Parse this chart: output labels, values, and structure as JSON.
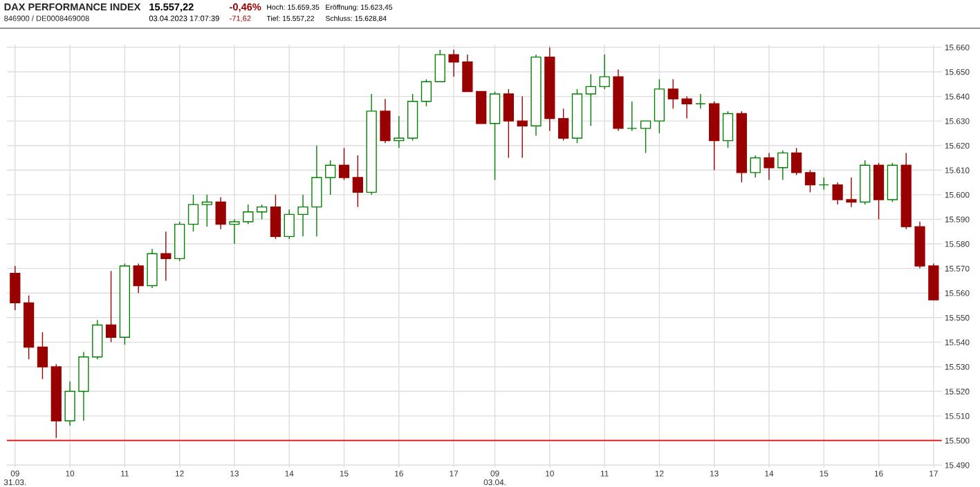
{
  "chart_data": {
    "type": "candlestick",
    "title": "DAX PERFORMANCE INDEX",
    "subtitle": "846900 / DE0008469008",
    "annotations": [
      "15.557,22",
      "03.04.2023 17:07:39",
      "-0,46%",
      "-71,62",
      "Hoch: 15.659,35",
      "Eröffnung: 15.623,45",
      "Tief: 15.557,22",
      "Schluss: 15.628,84"
    ],
    "categories": [
      "09\n31.03.",
      null,
      null,
      null,
      "10",
      null,
      null,
      null,
      "11",
      null,
      null,
      null,
      "12",
      null,
      null,
      null,
      "13",
      null,
      null,
      null,
      "14",
      null,
      null,
      null,
      "15",
      null,
      null,
      null,
      "16",
      null,
      null,
      null,
      "17",
      null,
      null,
      "09\n03.04.",
      null,
      null,
      null,
      "10",
      null,
      null,
      null,
      "11",
      null,
      null,
      null,
      "12",
      null,
      null,
      null,
      "13",
      null,
      null,
      null,
      "14",
      null,
      null,
      null,
      "15",
      null,
      null,
      null,
      "16",
      null,
      null,
      null,
      "17"
    ],
    "ohlc": [
      [
        15568,
        15571,
        15553,
        15556
      ],
      [
        15556,
        15559,
        15533,
        15538
      ],
      [
        15538,
        15544,
        15525,
        15530
      ],
      [
        15530,
        15531,
        15501,
        15508
      ],
      [
        15508,
        15524,
        15506,
        15520
      ],
      [
        15520,
        15536,
        15508,
        15534
      ],
      [
        15534,
        15549,
        15533,
        15547
      ],
      [
        15547,
        15569,
        15540,
        15542
      ],
      [
        15542,
        15572,
        15539,
        15571
      ],
      [
        15571,
        15572,
        15560,
        15563
      ],
      [
        15563,
        15578,
        15562,
        15576
      ],
      [
        15576,
        15585,
        15565,
        15574
      ],
      [
        15574,
        15589,
        15573,
        15588
      ],
      [
        15588,
        15600,
        15585,
        15596
      ],
      [
        15596,
        15600,
        15587,
        15597
      ],
      [
        15597,
        15599,
        15586,
        15588
      ],
      [
        15588,
        15590,
        15580,
        15589
      ],
      [
        15589,
        15596,
        15588,
        15593
      ],
      [
        15593,
        15596,
        15590,
        15595
      ],
      [
        15595,
        15600,
        15582,
        15583
      ],
      [
        15583,
        15594,
        15582,
        15592
      ],
      [
        15592,
        15600,
        15583,
        15595
      ],
      [
        15595,
        15620,
        15583,
        15607
      ],
      [
        15607,
        15614,
        15600,
        15612
      ],
      [
        15612,
        15619,
        15606,
        15607
      ],
      [
        15607,
        15616,
        15595,
        15601
      ],
      [
        15601,
        15641,
        15600,
        15634
      ],
      [
        15634,
        15639,
        15621,
        15622
      ],
      [
        15622,
        15632,
        15619,
        15623
      ],
      [
        15623,
        15641,
        15622,
        15638
      ],
      [
        15638,
        15647,
        15636,
        15646
      ],
      [
        15646,
        15659,
        15646,
        15657
      ],
      [
        15657,
        15659,
        15648,
        15654
      ],
      [
        15654,
        15657,
        15642,
        15642
      ],
      [
        15642,
        15642,
        15629,
        15629
      ],
      [
        15629,
        15642,
        15606,
        15641
      ],
      [
        15641,
        15643,
        15615,
        15630
      ],
      [
        15630,
        15640,
        15615,
        15628
      ],
      [
        15628,
        15657,
        15624,
        15656
      ],
      [
        15656,
        15660,
        15626,
        15631
      ],
      [
        15631,
        15635,
        15622,
        15623
      ],
      [
        15623,
        15643,
        15621,
        15641
      ],
      [
        15641,
        15649,
        15628,
        15644
      ],
      [
        15644,
        15657,
        15643,
        15648
      ],
      [
        15648,
        15651,
        15626,
        15627
      ],
      [
        15627,
        15638,
        15626,
        15627
      ],
      [
        15627,
        15630,
        15617,
        15630
      ],
      [
        15630,
        15647,
        15625,
        15643
      ],
      [
        15643,
        15647,
        15635,
        15639
      ],
      [
        15639,
        15640,
        15631,
        15637
      ],
      [
        15637,
        15641,
        15635,
        15637
      ],
      [
        15637,
        15638,
        15610,
        15622
      ],
      [
        15622,
        15634,
        15619,
        15633
      ],
      [
        15633,
        15634,
        15605,
        15609
      ],
      [
        15609,
        15616,
        15607,
        15615
      ],
      [
        15615,
        15617,
        15606,
        15611
      ],
      [
        15611,
        15618,
        15606,
        15617
      ],
      [
        15617,
        15619,
        15608,
        15609
      ],
      [
        15609,
        15610,
        15601,
        15604
      ],
      [
        15604,
        15607,
        15602,
        15604
      ],
      [
        15604,
        15605,
        15596,
        15598
      ],
      [
        15598,
        15607,
        15595,
        15597
      ],
      [
        15597,
        15614,
        15596,
        15612
      ],
      [
        15612,
        15613,
        15590,
        15598
      ],
      [
        15598,
        15613,
        15597,
        15612
      ],
      [
        15612,
        15617,
        15586,
        15587
      ],
      [
        15587,
        15589,
        15570,
        15571
      ],
      [
        15571,
        15572,
        15557,
        15557.22
      ]
    ],
    "ylim": [
      15489,
      15661
    ],
    "yticks": [
      {
        "value": 15490,
        "label": "15.490"
      },
      {
        "value": 15500,
        "label": "15.500"
      },
      {
        "value": 15510,
        "label": "15.510"
      },
      {
        "value": 15520,
        "label": "15.520"
      },
      {
        "value": 15530,
        "label": "15.530"
      },
      {
        "value": 15540,
        "label": "15.540"
      },
      {
        "value": 15550,
        "label": "15.550"
      },
      {
        "value": 15560,
        "label": "15.560"
      },
      {
        "value": 15570,
        "label": "15.570"
      },
      {
        "value": 15580,
        "label": "15.580"
      },
      {
        "value": 15590,
        "label": "15.590"
      },
      {
        "value": 15600,
        "label": "15.600"
      },
      {
        "value": 15610,
        "label": "15.610"
      },
      {
        "value": 15620,
        "label": "15.620"
      },
      {
        "value": 15630,
        "label": "15.630"
      },
      {
        "value": 15640,
        "label": "15.640"
      },
      {
        "value": 15650,
        "label": "15.650"
      },
      {
        "value": 15660,
        "label": "15.660"
      }
    ],
    "ref_lines": [
      {
        "axis": "y",
        "value": 15500,
        "label": null,
        "color": "#ff0000"
      }
    ],
    "grid": true
  }
}
